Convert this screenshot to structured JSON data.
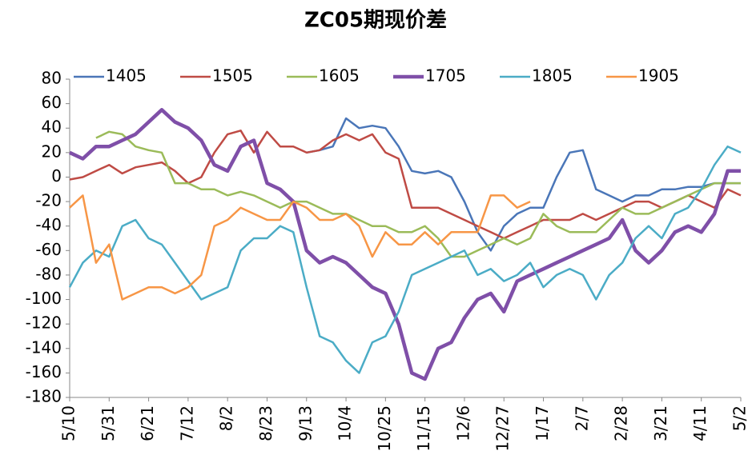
{
  "chart_data": {
    "type": "line",
    "title": "ZC05期现价差",
    "categories": [
      "5/10",
      null,
      null,
      "5/31",
      null,
      null,
      "6/21",
      null,
      null,
      "7/12",
      null,
      null,
      "8/2",
      null,
      null,
      "8/23",
      null,
      null,
      "9/13",
      null,
      null,
      "10/4",
      null,
      null,
      "10/25",
      null,
      null,
      "11/15",
      null,
      null,
      "12/6",
      null,
      null,
      "12/27",
      null,
      null,
      "1/17",
      null,
      null,
      "2/7",
      null,
      null,
      "2/28",
      null,
      null,
      "3/21",
      null,
      null,
      "4/11",
      null,
      null,
      "5/2"
    ],
    "ylim": [
      -180,
      80
    ],
    "yticks": [
      -180,
      -160,
      -140,
      -120,
      -100,
      -80,
      -60,
      -40,
      -20,
      0,
      20,
      40,
      60,
      80
    ],
    "legend": "top",
    "series": [
      {
        "name": "1405",
        "color": "#4a76b8",
        "width": 2.5,
        "values": [
          null,
          null,
          null,
          null,
          null,
          null,
          null,
          null,
          null,
          null,
          null,
          null,
          null,
          null,
          null,
          null,
          null,
          null,
          20,
          22,
          25,
          48,
          40,
          42,
          40,
          25,
          5,
          3,
          5,
          0,
          -20,
          -45,
          -60,
          -40,
          -30,
          -25,
          -25,
          0,
          20,
          22,
          -10,
          -15,
          -20,
          -15,
          -15,
          -10,
          -10,
          -8,
          -8,
          -5,
          -5,
          -5
        ]
      },
      {
        "name": "1505",
        "color": "#bf4b45",
        "width": 2.5,
        "values": [
          -2,
          0,
          5,
          10,
          3,
          8,
          10,
          12,
          5,
          -5,
          0,
          20,
          35,
          38,
          20,
          37,
          25,
          25,
          20,
          22,
          30,
          35,
          30,
          35,
          20,
          15,
          -25,
          -25,
          -25,
          -30,
          -35,
          -40,
          -45,
          -50,
          -45,
          -40,
          -35,
          -35,
          -35,
          -30,
          -35,
          -30,
          -25,
          -20,
          -20,
          -25,
          -20,
          -15,
          -20,
          -25,
          -10,
          -15
        ]
      },
      {
        "name": "1605",
        "color": "#9bbb59",
        "width": 2.5,
        "values": [
          null,
          null,
          32,
          37,
          35,
          25,
          22,
          20,
          -5,
          -5,
          -10,
          -10,
          -15,
          -12,
          -15,
          -20,
          -25,
          -20,
          -20,
          -25,
          -30,
          -30,
          -35,
          -40,
          -40,
          -45,
          -45,
          -40,
          -50,
          -65,
          -65,
          -60,
          -55,
          -50,
          -55,
          -50,
          -30,
          -40,
          -45,
          -45,
          -45,
          -35,
          -25,
          -30,
          -30,
          -25,
          -20,
          -15,
          -10,
          -5,
          -5,
          -5
        ]
      },
      {
        "name": "1705",
        "color": "#7f4fa8",
        "width": 4.5,
        "values": [
          20,
          15,
          25,
          25,
          30,
          35,
          45,
          55,
          45,
          40,
          30,
          10,
          5,
          25,
          30,
          -5,
          -10,
          -20,
          -60,
          -70,
          -65,
          -70,
          -80,
          -90,
          -95,
          -120,
          -160,
          -165,
          -140,
          -135,
          -115,
          -100,
          -95,
          -110,
          -85,
          -80,
          -75,
          -70,
          -65,
          -60,
          -55,
          -50,
          -35,
          -60,
          -70,
          -60,
          -45,
          -40,
          -45,
          -30,
          5,
          5
        ]
      },
      {
        "name": "1805",
        "color": "#4bacc6",
        "width": 2.5,
        "values": [
          -90,
          -70,
          -60,
          -65,
          -40,
          -35,
          -50,
          -55,
          -70,
          -85,
          -100,
          -95,
          -90,
          -60,
          -50,
          -50,
          -40,
          -45,
          -90,
          -130,
          -135,
          -150,
          -160,
          -135,
          -130,
          -110,
          -80,
          -75,
          -70,
          -65,
          -60,
          -80,
          -75,
          -85,
          -80,
          -70,
          -90,
          -80,
          -75,
          -80,
          -100,
          -80,
          -70,
          -50,
          -40,
          -50,
          -30,
          -25,
          -10,
          10,
          25,
          20
        ]
      },
      {
        "name": "1905",
        "color": "#f79646",
        "width": 2.5,
        "values": [
          -25,
          -15,
          -70,
          -55,
          -100,
          -95,
          -90,
          -90,
          -95,
          -90,
          -80,
          -40,
          -35,
          -25,
          -30,
          -35,
          -35,
          -20,
          -25,
          -35,
          -35,
          -30,
          -40,
          -65,
          -45,
          -55,
          -55,
          -45,
          -55,
          -45,
          -45,
          -45,
          -15,
          -15,
          -25,
          -20,
          null,
          null,
          null,
          null,
          null,
          null,
          null,
          null,
          null,
          null,
          null,
          null,
          null,
          null,
          null,
          null
        ]
      }
    ]
  }
}
